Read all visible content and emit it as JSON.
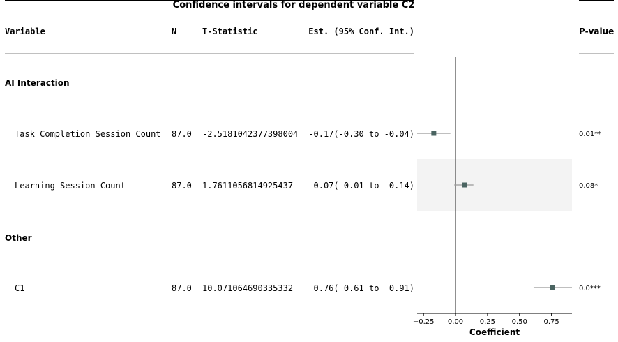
{
  "chart_data": {
    "type": "forest",
    "title": "Confidence intervals for dependent variable C2",
    "columns": {
      "variable": "Variable",
      "n": "N",
      "t_statistic": "T-Statistic",
      "estimate": "Est. (95% Conf. Int.)",
      "p_value": "P-value"
    },
    "xlabel": "Coefficient",
    "xlim": [
      -0.3,
      0.91
    ],
    "xticks": [
      -0.25,
      0.0,
      0.25,
      0.5,
      0.75
    ],
    "xtick_labels": [
      "−0.25",
      "0.00",
      "0.25",
      "0.50",
      "0.75"
    ],
    "reference_line": 0,
    "groups": [
      {
        "label": "AI Interaction",
        "rows": [
          {
            "label": "Task Completion Session Count",
            "n": "87.0",
            "t_stat": "-2.5181042377398004",
            "est_text": "-0.17(-0.30 to -0.04)",
            "p_text": "0.01**",
            "estimate": -0.17,
            "ci_low": -0.3,
            "ci_high": -0.04,
            "shaded": false
          },
          {
            "label": "Learning Session Count",
            "n": "87.0",
            "t_stat": "1.7611056814925437",
            "est_text": " 0.07(-0.01 to  0.14)",
            "p_text": "0.08*",
            "estimate": 0.07,
            "ci_low": -0.01,
            "ci_high": 0.14,
            "shaded": true
          }
        ]
      },
      {
        "label": "Other",
        "rows": [
          {
            "label": "C1",
            "n": "87.0",
            "t_stat": "10.071064690335332",
            "est_text": " 0.76( 0.61 to  0.91)",
            "p_text": "0.0***",
            "estimate": 0.76,
            "ci_low": 0.61,
            "ci_high": 0.91,
            "shaded": false
          }
        ]
      }
    ],
    "colors": {
      "marker": "#4a6461",
      "ci_line": "#999999",
      "shade": "#f3f3f3",
      "rule": "#808080"
    }
  }
}
